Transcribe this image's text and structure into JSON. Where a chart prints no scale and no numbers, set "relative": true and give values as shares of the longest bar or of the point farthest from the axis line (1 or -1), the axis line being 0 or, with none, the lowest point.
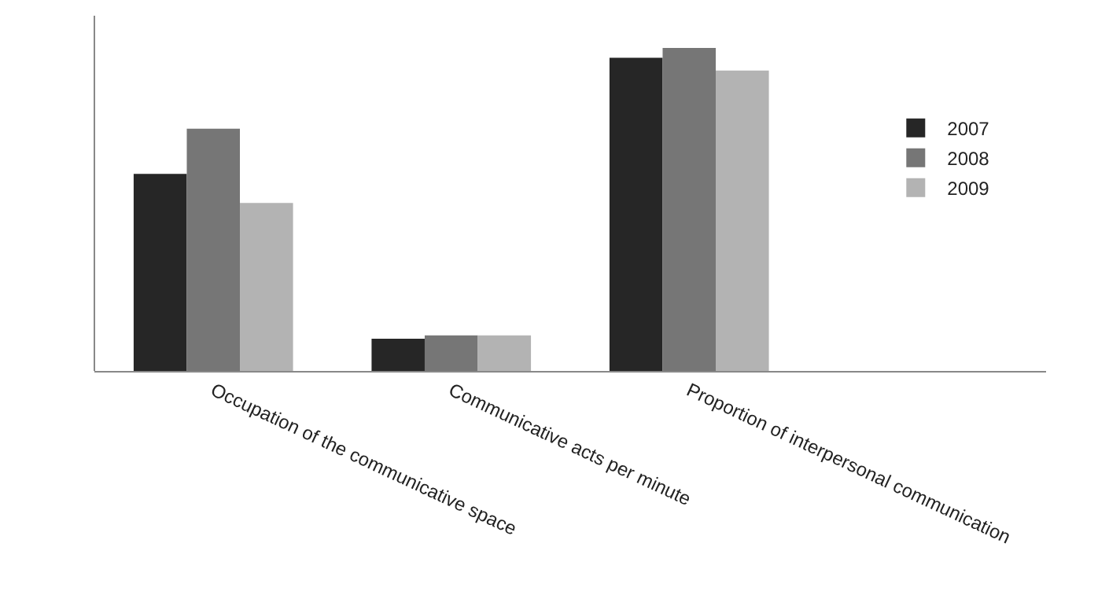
{
  "chart_data": {
    "type": "bar",
    "relative": true,
    "categories": [
      "Occupation of the communicative space",
      "Communicative acts per minute",
      "Proportion of interpersonal communication",
      null
    ],
    "series": [
      {
        "name": "2007",
        "color": "#262626",
        "values": [
          0.61,
          0.1,
          0.97,
          null
        ]
      },
      {
        "name": "2008",
        "color": "#767676",
        "values": [
          0.75,
          0.11,
          1,
          null
        ]
      },
      {
        "name": "2009",
        "color": "#b3b3b3",
        "values": [
          0.52,
          0.11,
          0.93,
          null
        ]
      }
    ],
    "legend": "right"
  }
}
